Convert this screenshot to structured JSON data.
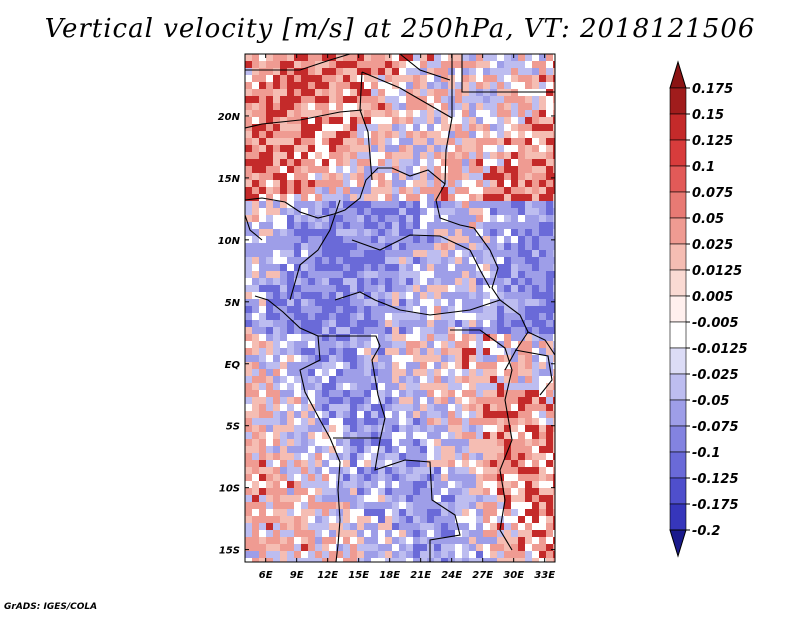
{
  "title": "Vertical velocity [m/s] at 250hPa, VT: 2018121506",
  "credit": "GrADS: IGES/COLA",
  "map": {
    "lat_ticks": [
      {
        "label": "20N",
        "lat": 20
      },
      {
        "label": "15N",
        "lat": 15
      },
      {
        "label": "10N",
        "lat": 10
      },
      {
        "label": "5N",
        "lat": 5
      },
      {
        "label": "EQ",
        "lat": 0
      },
      {
        "label": "5S",
        "lat": -5
      },
      {
        "label": "10S",
        "lat": -10
      },
      {
        "label": "15S",
        "lat": -15
      }
    ],
    "lon_ticks": [
      {
        "label": "6E",
        "lon": 6
      },
      {
        "label": "9E",
        "lon": 9
      },
      {
        "label": "12E",
        "lon": 12
      },
      {
        "label": "15E",
        "lon": 15
      },
      {
        "label": "18E",
        "lon": 18
      },
      {
        "label": "21E",
        "lon": 21
      },
      {
        "label": "24E",
        "lon": 24
      },
      {
        "label": "27E",
        "lon": 27
      },
      {
        "label": "30E",
        "lon": 30
      },
      {
        "label": "33E",
        "lon": 33
      }
    ],
    "lon_range": [
      4.0,
      34.0
    ],
    "lat_range": [
      -16.0,
      25.0
    ]
  },
  "colorbar": {
    "levels": [
      {
        "label": "0.175",
        "color": "#a01c1c"
      },
      {
        "label": "0.15",
        "color": "#c42a2a"
      },
      {
        "label": "0.125",
        "color": "#d83c3c"
      },
      {
        "label": "0.1",
        "color": "#e25a58"
      },
      {
        "label": "0.075",
        "color": "#e87a74"
      },
      {
        "label": "0.05",
        "color": "#ef9b92"
      },
      {
        "label": "0.025",
        "color": "#f5bdb3"
      },
      {
        "label": "0.0125",
        "color": "#fadad3"
      },
      {
        "label": "0.005",
        "color": "#fff0ee"
      },
      {
        "label": "-0.005",
        "color": "#ffffff"
      },
      {
        "label": "-0.0125",
        "color": "#dcdcf6"
      },
      {
        "label": "-0.025",
        "color": "#bdbdf0"
      },
      {
        "label": "-0.05",
        "color": "#9e9ee8"
      },
      {
        "label": "-0.075",
        "color": "#8383e0"
      },
      {
        "label": "-0.1",
        "color": "#6a6ad8"
      },
      {
        "label": "-0.125",
        "color": "#4f4fcc"
      },
      {
        "label": "-0.175",
        "color": "#3636bb"
      },
      {
        "label": "-0.2",
        "color": "#2424a6"
      }
    ],
    "top_arrow_color": "#8b1414",
    "bottom_arrow_color": "#1a1a8c"
  },
  "colors": {
    "positive_mid": "#ef9b92",
    "positive_light": "#f5bdb3",
    "negative_mid": "#9e9ee8",
    "negative_light": "#bdbdf0",
    "negative_strong": "#6a6ad8",
    "positive_strong": "#c42a2a",
    "border": "#000000"
  }
}
